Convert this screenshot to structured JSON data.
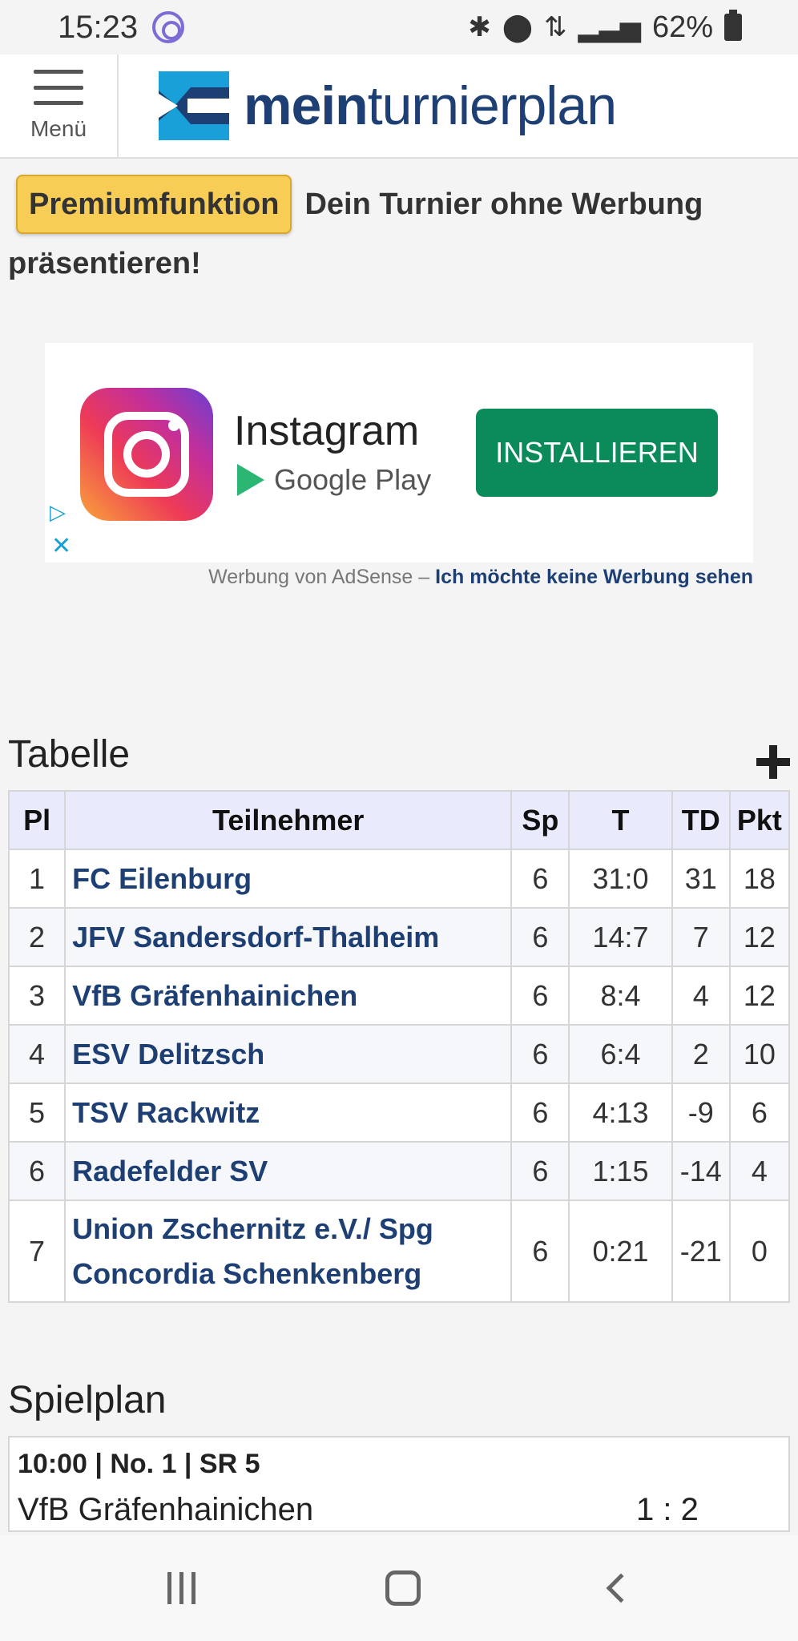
{
  "status_bar": {
    "time": "15:23",
    "battery": "62%"
  },
  "header": {
    "menu_label": "Menü",
    "brand_bold": "mein",
    "brand_regular": "turnierplan"
  },
  "premium": {
    "badge": "Premiumfunktion",
    "text": "Dein Turnier ohne Werbung präsentieren!"
  },
  "ad": {
    "app_name": "Instagram",
    "store": "Google Play",
    "cta": "INSTALLIEREN",
    "footer_prefix": "Werbung von AdSense –",
    "footer_link": "Ich möchte keine Werbung sehen"
  },
  "standings": {
    "title": "Tabelle",
    "headers": {
      "pl": "Pl",
      "team": "Teilnehmer",
      "sp": "Sp",
      "t": "T",
      "td": "TD",
      "pkt": "Pkt"
    },
    "rows": [
      {
        "pl": "1",
        "team": "FC Eilenburg",
        "sp": "6",
        "t": "31:0",
        "td": "31",
        "pkt": "18"
      },
      {
        "pl": "2",
        "team": "JFV Sandersdorf-Thalheim",
        "sp": "6",
        "t": "14:7",
        "td": "7",
        "pkt": "12"
      },
      {
        "pl": "3",
        "team": "VfB Gräfenhainichen",
        "sp": "6",
        "t": "8:4",
        "td": "4",
        "pkt": "12"
      },
      {
        "pl": "4",
        "team": "ESV Delitzsch",
        "sp": "6",
        "t": "6:4",
        "td": "2",
        "pkt": "10"
      },
      {
        "pl": "5",
        "team": "TSV Rackwitz",
        "sp": "6",
        "t": "4:13",
        "td": "-9",
        "pkt": "6"
      },
      {
        "pl": "6",
        "team": "Radefelder SV",
        "sp": "6",
        "t": "1:15",
        "td": "-14",
        "pkt": "4"
      },
      {
        "pl": "7",
        "team": "Union Zschernitz e.V./ Spg Concordia Schenkenberg",
        "sp": "6",
        "t": "0:21",
        "td": "-21",
        "pkt": "0"
      }
    ]
  },
  "schedule": {
    "title": "Spielplan",
    "matches": [
      {
        "meta": "10:00 | No. 1 | SR 5",
        "team": "VfB Gräfenhainichen",
        "score": "1 : 2"
      }
    ]
  }
}
